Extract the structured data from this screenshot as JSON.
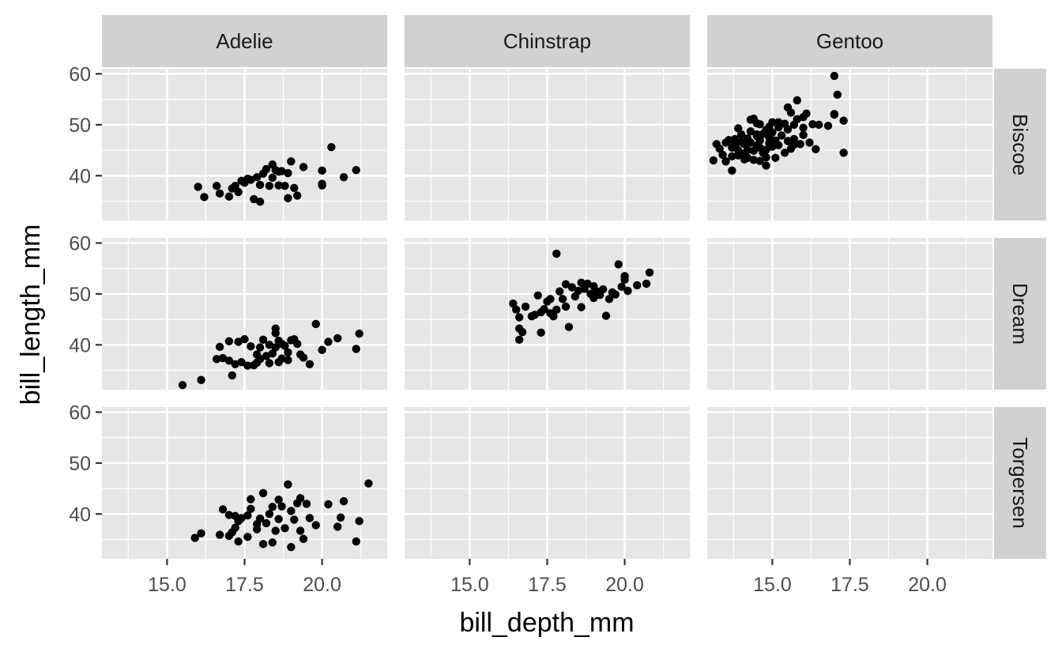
{
  "chart_data": {
    "type": "scatter",
    "xlabel": "bill_depth_mm",
    "ylabel": "bill_length_mm",
    "xlim": [
      12.9,
      22.1
    ],
    "ylim": [
      31.2,
      61.0
    ],
    "x_ticks": [
      "15.0",
      "17.5",
      "20.0"
    ],
    "x_tick_values": [
      15.0,
      17.5,
      20.0
    ],
    "y_ticks": [
      "40",
      "50",
      "60"
    ],
    "y_tick_values": [
      40,
      50,
      60
    ],
    "grid": true,
    "facet_cols": [
      "Adelie",
      "Chinstrap",
      "Gentoo"
    ],
    "facet_rows": [
      "Biscoe",
      "Dream",
      "Torgersen"
    ],
    "colors": {
      "panel_bg": "#e6e6e6",
      "strip_bg": "#d1d1d1",
      "grid": "#ffffff",
      "point": "#000000"
    },
    "panels": [
      {
        "species": "Adelie",
        "island": "Biscoe",
        "points": [
          [
            16.0,
            37.8
          ],
          [
            16.2,
            35.8
          ],
          [
            16.6,
            38.0
          ],
          [
            16.7,
            36.5
          ],
          [
            17.0,
            35.9
          ],
          [
            17.1,
            37.5
          ],
          [
            17.2,
            38.0
          ],
          [
            17.3,
            36.8
          ],
          [
            17.5,
            38.6
          ],
          [
            17.4,
            39.0
          ],
          [
            17.7,
            39.2
          ],
          [
            17.9,
            39.7
          ],
          [
            18.1,
            40.4
          ],
          [
            18.2,
            41.3
          ],
          [
            18.4,
            42.2
          ],
          [
            18.5,
            41.1
          ],
          [
            18.0,
            38.2
          ],
          [
            18.3,
            38.0
          ],
          [
            18.6,
            38.1
          ],
          [
            18.8,
            38.0
          ],
          [
            18.9,
            40.5
          ],
          [
            19.0,
            42.8
          ],
          [
            18.7,
            40.9
          ],
          [
            19.1,
            37.6
          ],
          [
            19.4,
            41.7
          ],
          [
            17.8,
            35.4
          ],
          [
            18.0,
            34.9
          ],
          [
            18.9,
            35.6
          ],
          [
            19.2,
            36.1
          ],
          [
            20.0,
            38.4
          ],
          [
            20.0,
            38.1
          ],
          [
            20.0,
            41.0
          ],
          [
            20.3,
            45.6
          ],
          [
            20.7,
            39.7
          ],
          [
            21.1,
            41.1
          ],
          [
            18.6,
            40.8
          ],
          [
            18.4,
            39.6
          ],
          [
            17.6,
            39.4
          ]
        ]
      },
      {
        "species": "Chinstrap",
        "island": "Biscoe",
        "points": []
      },
      {
        "species": "Gentoo",
        "island": "Biscoe",
        "points": [
          [
            13.1,
            43.0
          ],
          [
            13.2,
            46.2
          ],
          [
            13.3,
            45.3
          ],
          [
            13.4,
            44.1
          ],
          [
            13.5,
            42.8
          ],
          [
            13.5,
            46.5
          ],
          [
            13.6,
            47.0
          ],
          [
            13.7,
            41.0
          ],
          [
            13.7,
            43.8
          ],
          [
            13.7,
            45.5
          ],
          [
            13.8,
            46.1
          ],
          [
            13.8,
            47.2
          ],
          [
            13.9,
            44.0
          ],
          [
            13.9,
            45.0
          ],
          [
            14.0,
            46.6
          ],
          [
            14.0,
            48.1
          ],
          [
            14.1,
            43.2
          ],
          [
            14.1,
            44.4
          ],
          [
            14.1,
            46.2
          ],
          [
            14.2,
            47.3
          ],
          [
            14.2,
            45.0
          ],
          [
            14.3,
            46.5
          ],
          [
            14.3,
            48.7
          ],
          [
            14.4,
            51.2
          ],
          [
            14.4,
            44.9
          ],
          [
            14.4,
            43.1
          ],
          [
            14.5,
            46.0
          ],
          [
            14.5,
            47.8
          ],
          [
            14.5,
            50.3
          ],
          [
            14.6,
            42.9
          ],
          [
            14.6,
            45.5
          ],
          [
            14.6,
            46.9
          ],
          [
            14.7,
            44.5
          ],
          [
            14.7,
            48.2
          ],
          [
            14.8,
            42.0
          ],
          [
            14.8,
            45.1
          ],
          [
            14.8,
            49.0
          ],
          [
            14.9,
            46.4
          ],
          [
            14.9,
            47.5
          ],
          [
            15.0,
            45.7
          ],
          [
            15.0,
            50.5
          ],
          [
            15.0,
            48.5
          ],
          [
            15.1,
            43.5
          ],
          [
            15.1,
            46.9
          ],
          [
            15.2,
            49.5
          ],
          [
            15.2,
            46.0
          ],
          [
            15.3,
            47.9
          ],
          [
            15.4,
            50.2
          ],
          [
            15.4,
            44.5
          ],
          [
            15.5,
            46.8
          ],
          [
            15.5,
            49.1
          ],
          [
            15.6,
            52.4
          ],
          [
            15.6,
            45.3
          ],
          [
            15.7,
            47.2
          ],
          [
            15.7,
            50.0
          ],
          [
            15.8,
            51.1
          ],
          [
            15.8,
            54.8
          ],
          [
            15.9,
            46.2
          ],
          [
            16.0,
            49.4
          ],
          [
            16.0,
            48.0
          ],
          [
            16.1,
            52.2
          ],
          [
            16.2,
            46.5
          ],
          [
            16.3,
            50.1
          ],
          [
            16.4,
            45.2
          ],
          [
            16.5,
            50.0
          ],
          [
            16.8,
            49.8
          ],
          [
            17.0,
            52.0
          ],
          [
            17.0,
            59.6
          ],
          [
            17.1,
            55.9
          ],
          [
            17.3,
            44.5
          ],
          [
            17.3,
            50.8
          ],
          [
            17.0,
            52.1
          ],
          [
            14.6,
            50.1
          ],
          [
            14.3,
            51.0
          ],
          [
            14.9,
            49.6
          ],
          [
            15.2,
            50.5
          ],
          [
            15.5,
            53.4
          ],
          [
            13.9,
            49.3
          ],
          [
            14.2,
            43.5
          ],
          [
            14.5,
            48.1
          ],
          [
            14.8,
            43.6
          ],
          [
            15.7,
            46.1
          ],
          [
            16.0,
            51.5
          ]
        ]
      },
      {
        "species": "Adelie",
        "island": "Dream",
        "points": [
          [
            15.5,
            32.1
          ],
          [
            16.1,
            33.1
          ],
          [
            16.6,
            37.2
          ],
          [
            16.7,
            39.6
          ],
          [
            16.8,
            37.4
          ],
          [
            17.0,
            36.9
          ],
          [
            17.0,
            40.7
          ],
          [
            17.1,
            34.0
          ],
          [
            17.2,
            36.2
          ],
          [
            17.3,
            40.6
          ],
          [
            17.4,
            36.6
          ],
          [
            17.5,
            41.1
          ],
          [
            17.6,
            35.9
          ],
          [
            17.8,
            36.0
          ],
          [
            17.9,
            36.5
          ],
          [
            17.9,
            38.1
          ],
          [
            18.0,
            37.2
          ],
          [
            18.0,
            39.5
          ],
          [
            18.1,
            41.0
          ],
          [
            18.2,
            37.8
          ],
          [
            18.3,
            36.4
          ],
          [
            18.4,
            38.3
          ],
          [
            18.5,
            39.5
          ],
          [
            18.5,
            42.3
          ],
          [
            18.5,
            43.2
          ],
          [
            18.6,
            36.6
          ],
          [
            18.7,
            37.3
          ],
          [
            18.7,
            40.2
          ],
          [
            18.8,
            39.8
          ],
          [
            18.9,
            38.5
          ],
          [
            19.0,
            40.9
          ],
          [
            19.1,
            41.1
          ],
          [
            19.2,
            40.2
          ],
          [
            19.3,
            38.1
          ],
          [
            19.4,
            37.5
          ],
          [
            19.6,
            36.2
          ],
          [
            19.8,
            44.1
          ],
          [
            20.0,
            39.0
          ],
          [
            20.2,
            40.6
          ],
          [
            20.5,
            41.3
          ],
          [
            21.1,
            39.2
          ],
          [
            21.2,
            42.2
          ],
          [
            18.3,
            40.0
          ],
          [
            17.7,
            39.7
          ],
          [
            18.9,
            37.0
          ],
          [
            18.6,
            40.8
          ]
        ]
      },
      {
        "species": "Chinstrap",
        "island": "Dream",
        "points": [
          [
            16.4,
            48.1
          ],
          [
            16.5,
            46.9
          ],
          [
            16.6,
            43.2
          ],
          [
            16.6,
            45.4
          ],
          [
            16.6,
            41.0
          ],
          [
            16.7,
            42.5
          ],
          [
            16.8,
            47.5
          ],
          [
            17.0,
            45.6
          ],
          [
            17.1,
            45.9
          ],
          [
            17.2,
            49.7
          ],
          [
            17.3,
            42.4
          ],
          [
            17.3,
            46.4
          ],
          [
            17.4,
            47.0
          ],
          [
            17.5,
            48.5
          ],
          [
            17.6,
            46.2
          ],
          [
            17.7,
            45.6
          ],
          [
            17.8,
            57.9
          ],
          [
            17.8,
            46.9
          ],
          [
            17.9,
            50.5
          ],
          [
            18.0,
            49.0
          ],
          [
            18.1,
            51.9
          ],
          [
            18.1,
            47.5
          ],
          [
            18.2,
            43.5
          ],
          [
            18.3,
            51.3
          ],
          [
            18.4,
            49.5
          ],
          [
            18.5,
            50.6
          ],
          [
            18.6,
            47.4
          ],
          [
            18.7,
            51.0
          ],
          [
            18.8,
            52.0
          ],
          [
            18.9,
            50.0
          ],
          [
            19.0,
            49.2
          ],
          [
            19.0,
            51.5
          ],
          [
            19.1,
            50.5
          ],
          [
            19.3,
            50.9
          ],
          [
            19.4,
            45.7
          ],
          [
            19.5,
            49.0
          ],
          [
            19.6,
            50.3
          ],
          [
            19.7,
            49.9
          ],
          [
            19.8,
            55.8
          ],
          [
            19.9,
            51.4
          ],
          [
            20.0,
            52.8
          ],
          [
            20.0,
            53.5
          ],
          [
            20.1,
            50.6
          ],
          [
            20.4,
            51.7
          ],
          [
            20.7,
            52.0
          ],
          [
            20.8,
            54.2
          ],
          [
            18.6,
            52.2
          ],
          [
            19.2,
            49.8
          ],
          [
            17.6,
            49.0
          ]
        ]
      },
      {
        "species": "Gentoo",
        "island": "Dream",
        "points": []
      },
      {
        "species": "Adelie",
        "island": "Torgersen",
        "points": [
          [
            15.9,
            35.3
          ],
          [
            16.1,
            36.2
          ],
          [
            16.7,
            35.9
          ],
          [
            16.8,
            40.9
          ],
          [
            17.0,
            39.8
          ],
          [
            17.0,
            35.7
          ],
          [
            17.1,
            36.4
          ],
          [
            17.2,
            39.6
          ],
          [
            17.2,
            37.3
          ],
          [
            17.3,
            34.6
          ],
          [
            17.3,
            38.6
          ],
          [
            17.4,
            39.2
          ],
          [
            17.6,
            35.5
          ],
          [
            17.6,
            39.7
          ],
          [
            17.7,
            41.0
          ],
          [
            17.7,
            42.9
          ],
          [
            17.9,
            37.0
          ],
          [
            18.0,
            39.1
          ],
          [
            18.1,
            34.1
          ],
          [
            18.1,
            44.1
          ],
          [
            18.2,
            38.2
          ],
          [
            18.3,
            40.0
          ],
          [
            18.4,
            34.4
          ],
          [
            18.4,
            41.4
          ],
          [
            18.5,
            36.7
          ],
          [
            18.6,
            42.8
          ],
          [
            18.7,
            41.5
          ],
          [
            18.8,
            37.2
          ],
          [
            18.9,
            45.8
          ],
          [
            19.0,
            33.5
          ],
          [
            19.0,
            40.6
          ],
          [
            19.1,
            38.9
          ],
          [
            19.2,
            42.1
          ],
          [
            19.3,
            43.1
          ],
          [
            19.3,
            36.7
          ],
          [
            19.4,
            35.1
          ],
          [
            19.5,
            42.0
          ],
          [
            19.6,
            39.2
          ],
          [
            19.8,
            37.8
          ],
          [
            20.2,
            41.9
          ],
          [
            20.5,
            37.5
          ],
          [
            20.6,
            39.3
          ],
          [
            20.7,
            42.5
          ],
          [
            21.1,
            34.6
          ],
          [
            21.2,
            38.6
          ],
          [
            21.5,
            46.0
          ],
          [
            18.6,
            39.0
          ],
          [
            17.9,
            38.0
          ]
        ]
      },
      {
        "species": "Chinstrap",
        "island": "Torgersen",
        "points": []
      },
      {
        "species": "Gentoo",
        "island": "Torgersen",
        "points": []
      }
    ]
  }
}
